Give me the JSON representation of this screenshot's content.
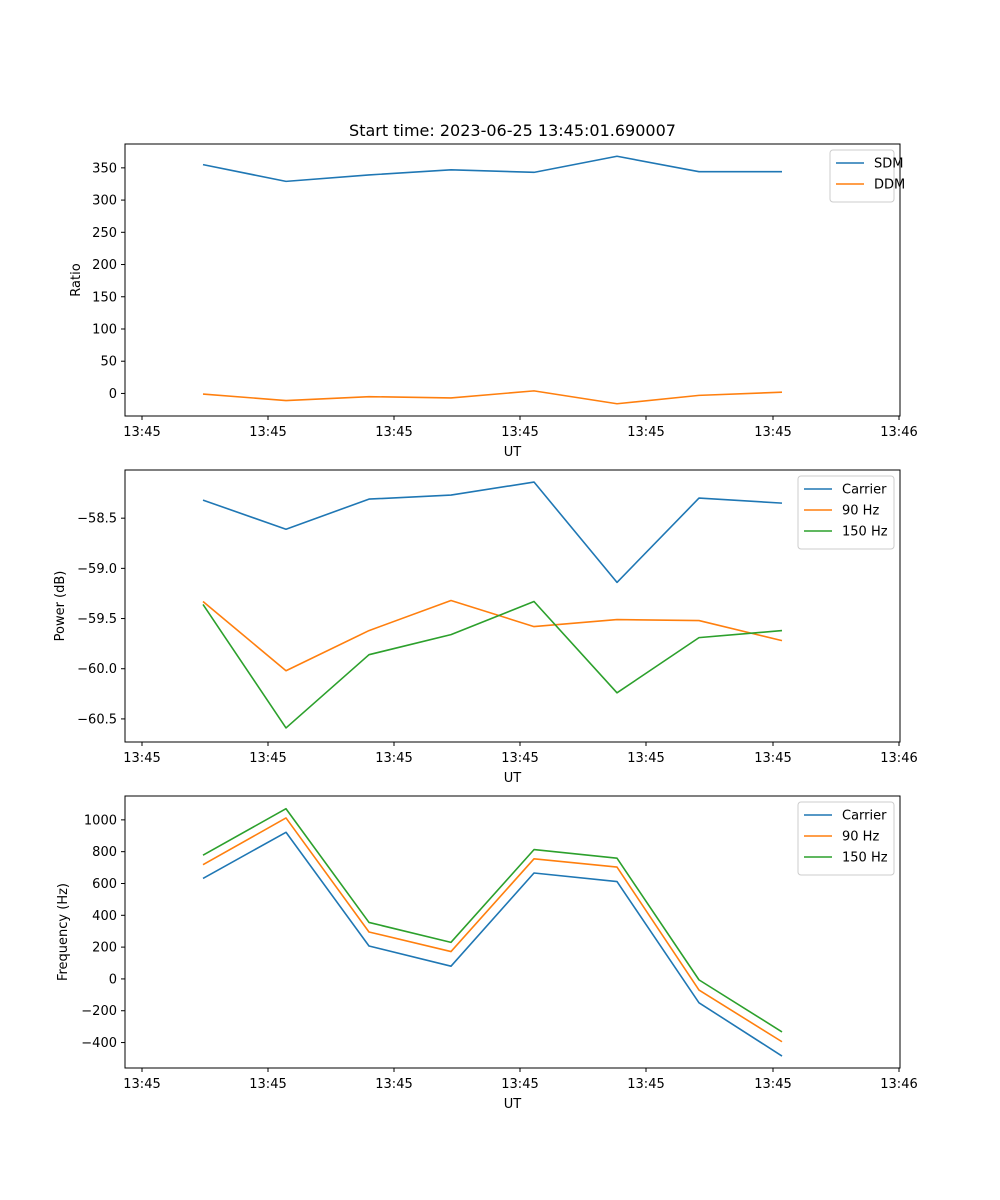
{
  "title": "Start time: 2023-06-25 13:45:01.690007",
  "x_tick_labels": [
    "13:45",
    "13:45",
    "13:45",
    "13:45",
    "13:45",
    "13:45",
    "13:45",
    "13:46"
  ],
  "chart_data": [
    {
      "type": "line",
      "title": "Start time: 2023-06-25 13:45:01.690007",
      "xlabel": "UT",
      "ylabel": "Ratio",
      "x": [
        1,
        2,
        3,
        4,
        5,
        6,
        7,
        8
      ],
      "ylim": [
        -35,
        387
      ],
      "yticks": [
        0,
        50,
        100,
        150,
        200,
        250,
        300,
        350
      ],
      "ytick_labels": [
        "0",
        "50",
        "100",
        "150",
        "200",
        "250",
        "300",
        "350"
      ],
      "legend_position": "top-right",
      "grid": false,
      "series": [
        {
          "name": "SDM",
          "color": "#1f77b4",
          "values": [
            355,
            329,
            339,
            347,
            343,
            368,
            344,
            344
          ]
        },
        {
          "name": "DDM",
          "color": "#ff7f0e",
          "values": [
            -1,
            -11,
            -5,
            -7,
            4,
            -16,
            -3,
            2
          ]
        }
      ]
    },
    {
      "type": "line",
      "xlabel": "UT",
      "ylabel": "Power (dB)",
      "x": [
        1,
        2,
        3,
        4,
        5,
        6,
        7,
        8
      ],
      "ylim": [
        -60.73,
        -58.02
      ],
      "yticks": [
        -60.5,
        -60.0,
        -59.5,
        -59.0,
        -58.5
      ],
      "ytick_labels": [
        "−60.5",
        "−60.0",
        "−59.5",
        "−59.0",
        "−58.5"
      ],
      "legend_position": "top-right",
      "grid": false,
      "series": [
        {
          "name": "Carrier",
          "color": "#1f77b4",
          "values": [
            -58.32,
            -58.61,
            -58.31,
            -58.27,
            -58.14,
            -59.14,
            -58.3,
            -58.35
          ]
        },
        {
          "name": "90 Hz",
          "color": "#ff7f0e",
          "values": [
            -59.33,
            -60.02,
            -59.62,
            -59.32,
            -59.58,
            -59.51,
            -59.52,
            -59.72
          ]
        },
        {
          "name": "150 Hz",
          "color": "#2ca02c",
          "values": [
            -59.36,
            -60.59,
            -59.86,
            -59.66,
            -59.33,
            -60.24,
            -59.69,
            -59.62
          ]
        }
      ]
    },
    {
      "type": "line",
      "xlabel": "UT",
      "ylabel": "Frequency (Hz)",
      "x": [
        1,
        2,
        3,
        4,
        5,
        6,
        7,
        8
      ],
      "ylim": [
        -560,
        1150
      ],
      "yticks": [
        -400,
        -200,
        0,
        200,
        400,
        600,
        800,
        1000
      ],
      "ytick_labels": [
        "−400",
        "−200",
        "0",
        "200",
        "400",
        "600",
        "800",
        "1000"
      ],
      "legend_position": "top-right",
      "grid": false,
      "series": [
        {
          "name": "Carrier",
          "color": "#1f77b4",
          "values": [
            632,
            922,
            207,
            80,
            666,
            612,
            -150,
            -485
          ]
        },
        {
          "name": "90 Hz",
          "color": "#ff7f0e",
          "values": [
            718,
            1012,
            295,
            172,
            755,
            703,
            -70,
            -395
          ]
        },
        {
          "name": "150 Hz",
          "color": "#2ca02c",
          "values": [
            778,
            1070,
            355,
            230,
            813,
            759,
            -6,
            -333
          ]
        }
      ]
    }
  ]
}
